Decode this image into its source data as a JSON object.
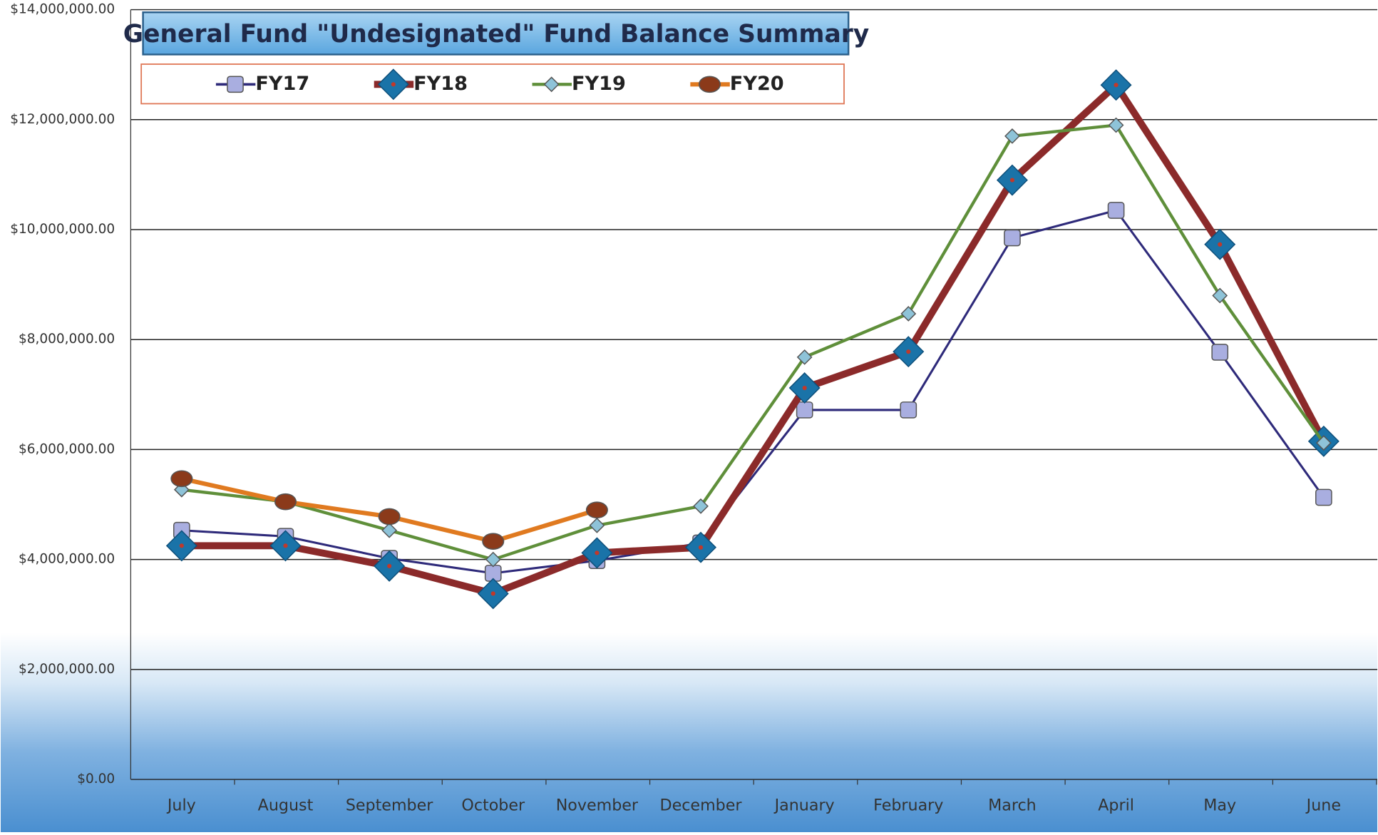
{
  "chart_data": {
    "type": "line",
    "title": "General Fund \"Undesignated\" Fund Balance Summary",
    "categories": [
      "July",
      "August",
      "September",
      "October",
      "November",
      "December",
      "January",
      "February",
      "March",
      "April",
      "May",
      "June"
    ],
    "series": [
      {
        "name": "FY17",
        "color": "#2e2a7a",
        "marker_color": "#a9aee0",
        "values": [
          4530000,
          4420000,
          4020000,
          3750000,
          3980000,
          4300000,
          6720000,
          6720000,
          9850000,
          10350000,
          7770000,
          5130000
        ]
      },
      {
        "name": "FY18",
        "color": "#8b2a2a",
        "marker_color": "#1a73a8",
        "values": [
          4250000,
          4250000,
          3880000,
          3380000,
          4120000,
          4220000,
          7120000,
          7780000,
          10900000,
          12630000,
          9730000,
          6150000
        ]
      },
      {
        "name": "FY19",
        "color": "#5f8f3a",
        "marker_color": "#8ec3d8",
        "values": [
          5270000,
          5050000,
          4530000,
          4000000,
          4620000,
          4970000,
          7680000,
          8470000,
          11700000,
          11900000,
          8800000,
          6120000
        ]
      },
      {
        "name": "FY20",
        "color": "#e07a20",
        "marker_color": "#8b3a1a",
        "values": [
          5470000,
          5050000,
          4780000,
          4330000,
          4900000,
          null,
          null,
          null,
          null,
          null,
          null,
          null
        ]
      }
    ],
    "ylim": [
      0,
      14000000
    ],
    "yticks": [
      {
        "value": 0,
        "label": "$0.00"
      },
      {
        "value": 2000000,
        "label": "$2,000,000.00"
      },
      {
        "value": 4000000,
        "label": "$4,000,000.00"
      },
      {
        "value": 6000000,
        "label": "$6,000,000.00"
      },
      {
        "value": 8000000,
        "label": "$8,000,000.00"
      },
      {
        "value": 10000000,
        "label": "$10,000,000.00"
      },
      {
        "value": 12000000,
        "label": "$12,000,000.00"
      },
      {
        "value": 14000000,
        "label": "$14,000,000.00"
      }
    ],
    "grid": true,
    "legend": "top"
  }
}
